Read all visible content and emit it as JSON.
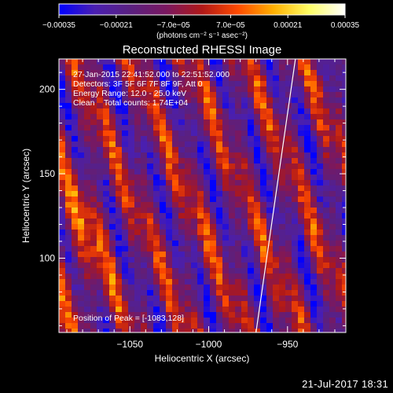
{
  "chart_data": {
    "type": "heatmap",
    "title": "Reconstructed RHESSI Image",
    "xlabel": "Heliocentric X (arcsec)",
    "ylabel": "Heliocentric Y (arcsec)",
    "xlim": [
      -1095,
      -913
    ],
    "ylim": [
      56,
      218
    ],
    "xticks": [
      -1050,
      -1000,
      -950
    ],
    "yticks": [
      100,
      150,
      200
    ],
    "xtick_labels": [
      "−1050",
      "−1000",
      "−950"
    ],
    "ytick_labels": [
      "100",
      "150",
      "200"
    ],
    "colorbar": {
      "label": "(photons cm⁻² s⁻¹ asec⁻²)",
      "vmin": -0.00035,
      "vmax": 0.00035,
      "ticks": [
        -0.00035,
        -0.00021,
        -7e-05,
        7e-05,
        0.00021,
        0.00035
      ],
      "tick_labels": [
        "−0.00035",
        "−0.00021",
        "−7.0e−05",
        "7.0e−05",
        "0.00021",
        "0.00035"
      ],
      "colormap": [
        "#0000ff",
        "#4a1fb0",
        "#5a2080",
        "#7a1860",
        "#b01818",
        "#ff4a00",
        "#ffb000",
        "#ffff66",
        "#ffffff"
      ]
    },
    "annotations": [
      "27-Jan-2015 22:41:52.000 to 22:51:52.000",
      "Detectors: 3F 5F 6F 7F 8F 9F, Att 0",
      "Energy Range: 12.0 - 25.0 keV",
      "Clean    Total counts: 1.74E+04"
    ],
    "peak_label": "Position of Peak = [-1083,128]",
    "peak": [
      -1083,
      128
    ],
    "limb_line": [
      [
        -970,
        56
      ],
      [
        -945,
        218
      ]
    ],
    "grid": false
  },
  "footer": {
    "timestamp": "21-Jul-2017 18:31"
  }
}
